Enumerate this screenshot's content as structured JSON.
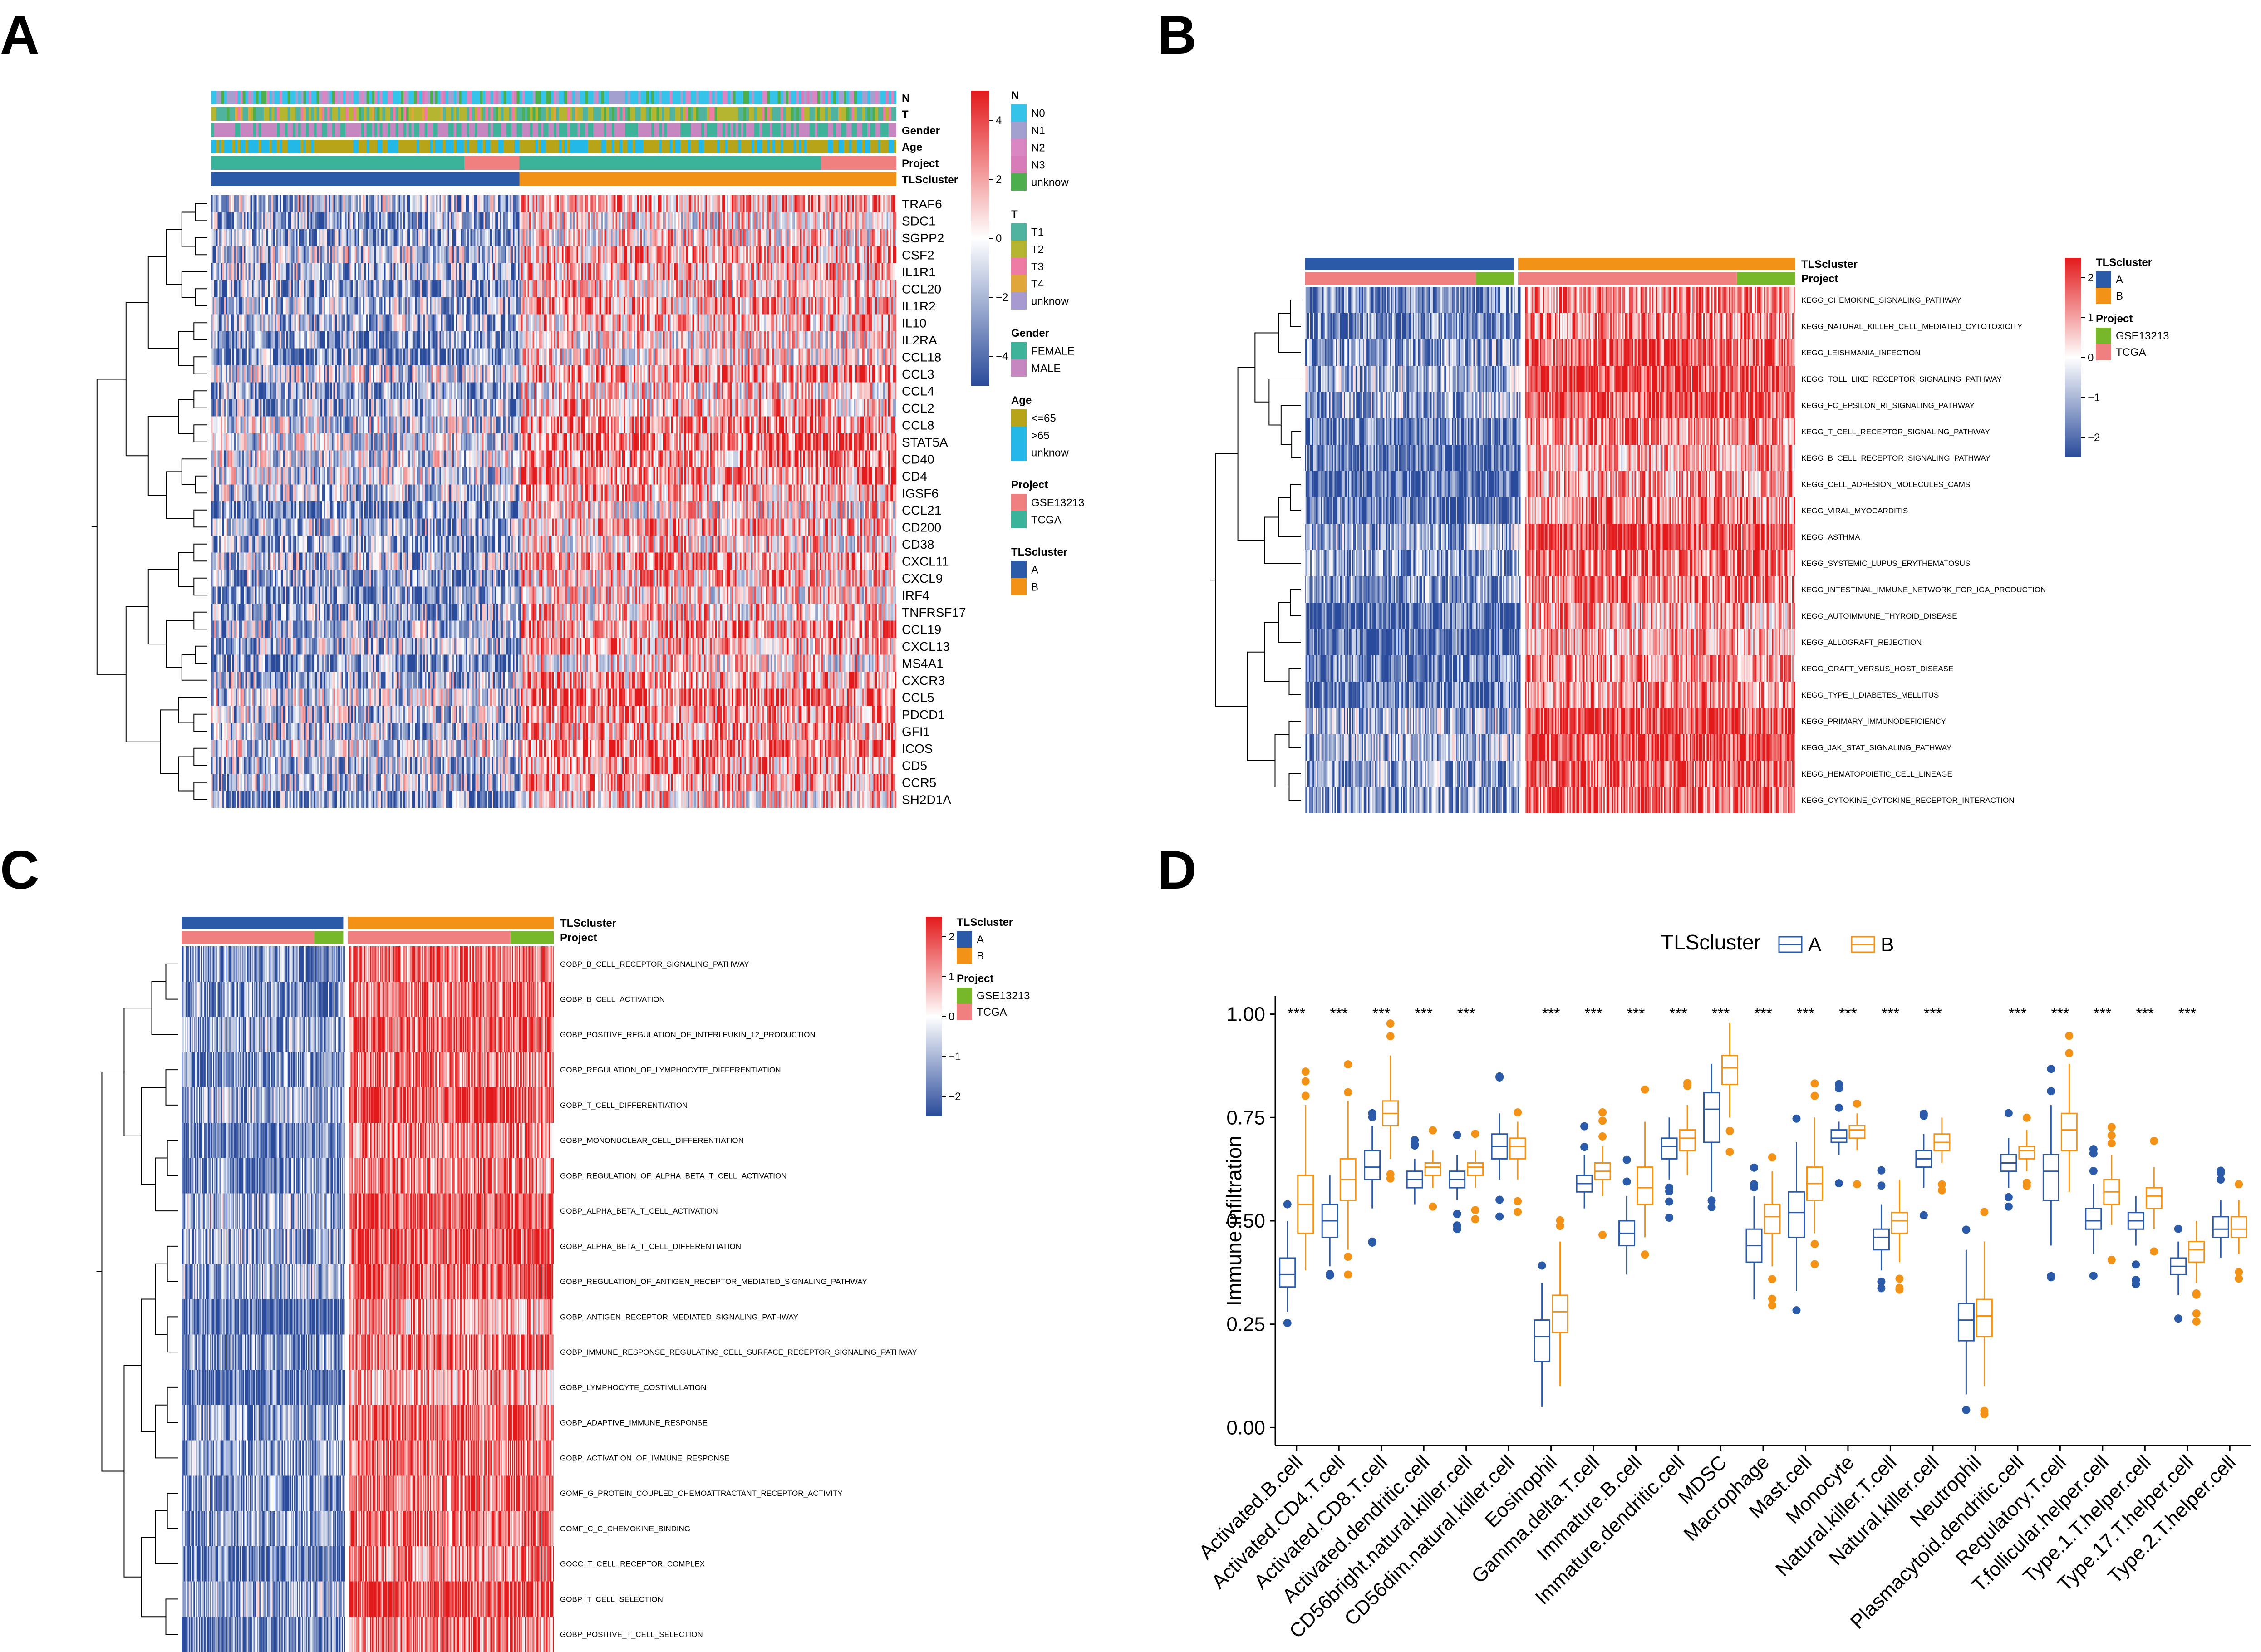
{
  "panel_labels": [
    "A",
    "B",
    "C",
    "D"
  ],
  "colors": {
    "cluster_A": "#2b5aa8",
    "cluster_B": "#f29318",
    "gse13213": "#76b82a",
    "tcga": "#f08080",
    "heat_low": "#2a4b9b",
    "heat_mid": "#ffffff",
    "heat_high": "#e31a1c",
    "N0": "#35c3ea",
    "N1": "#a3a0d0",
    "N2": "#d986c2",
    "N3": "#d77cb8",
    "T1": "#4fb3a0",
    "T2": "#b6b531",
    "T3": "#ed7ba3",
    "T4": "#e0a63b",
    "unknow": "#4cae4c",
    "FEMALE": "#3fb39a",
    "MALE": "#c687c0",
    "age_le65": "#b7a419",
    "age_gt65": "#24b8e6",
    "age_unknow": "#25b6ea",
    "project_tcga_A": "#3bb39a"
  },
  "chart_data": [
    {
      "type": "heatmap",
      "panel": "A",
      "annotation_tracks": [
        "N",
        "T",
        "Gender",
        "Age",
        "Project",
        "TLScluster"
      ],
      "rows": [
        "TRAF6",
        "SDC1",
        "SGPP2",
        "CSF2",
        "IL1R1",
        "CCL20",
        "IL1R2",
        "IL10",
        "IL2RA",
        "CCL18",
        "CCL3",
        "CCL4",
        "CCL2",
        "CCL8",
        "STAT5A",
        "CD40",
        "CD4",
        "IGSF6",
        "CCL21",
        "CD200",
        "CD38",
        "CXCL11",
        "CXCL9",
        "IRF4",
        "TNFRSF17",
        "CCL19",
        "CXCL13",
        "MS4A1",
        "CXCR3",
        "CCL5",
        "PDCD1",
        "GFI1",
        "ICOS",
        "CD5",
        "CCR5",
        "SH2D1A"
      ],
      "color_scale": {
        "min": -4,
        "max": 4,
        "ticks": [
          "4",
          "2",
          "0",
          "−2",
          "−4"
        ]
      },
      "legend": [
        {
          "title": "N",
          "items": [
            "N0",
            "N1",
            "N2",
            "N3",
            "unknow"
          ]
        },
        {
          "title": "T",
          "items": [
            "T1",
            "T2",
            "T3",
            "T4",
            "unknow"
          ]
        },
        {
          "title": "Gender",
          "items": [
            "FEMALE",
            "MALE"
          ]
        },
        {
          "title": "Age",
          "items": [
            "<=65",
            ">65",
            "unknow"
          ]
        },
        {
          "title": "Project",
          "items": [
            "GSE13213",
            "TCGA"
          ]
        },
        {
          "title": "TLScluster",
          "items": [
            "A",
            "B"
          ]
        }
      ],
      "column_split": {
        "cluster_A_fraction": 0.45,
        "cluster_B_fraction": 0.55
      }
    },
    {
      "type": "heatmap",
      "panel": "B",
      "annotation_tracks": [
        "TLScluster",
        "Project"
      ],
      "rows": [
        "KEGG_CHEMOKINE_SIGNALING_PATHWAY",
        "KEGG_NATURAL_KILLER_CELL_MEDIATED_CYTOTOXICITY",
        "KEGG_LEISHMANIA_INFECTION",
        "KEGG_TOLL_LIKE_RECEPTOR_SIGNALING_PATHWAY",
        "KEGG_FC_EPSILON_RI_SIGNALING_PATHWAY",
        "KEGG_T_CELL_RECEPTOR_SIGNALING_PATHWAY",
        "KEGG_B_CELL_RECEPTOR_SIGNALING_PATHWAY",
        "KEGG_CELL_ADHESION_MOLECULES_CAMS",
        "KEGG_VIRAL_MYOCARDITIS",
        "KEGG_ASTHMA",
        "KEGG_SYSTEMIC_LUPUS_ERYTHEMATOSUS",
        "KEGG_INTESTINAL_IMMUNE_NETWORK_FOR_IGA_PRODUCTION",
        "KEGG_AUTOIMMUNE_THYROID_DISEASE",
        "KEGG_ALLOGRAFT_REJECTION",
        "KEGG_GRAFT_VERSUS_HOST_DISEASE",
        "KEGG_TYPE_I_DIABETES_MELLITUS",
        "KEGG_PRIMARY_IMMUNODEFICIENCY",
        "KEGG_JAK_STAT_SIGNALING_PATHWAY",
        "KEGG_HEMATOPOIETIC_CELL_LINEAGE",
        "KEGG_CYTOKINE_CYTOKINE_RECEPTOR_INTERACTION"
      ],
      "color_scale": {
        "min": -2,
        "max": 2,
        "ticks": [
          "2",
          "1",
          "0",
          "−1",
          "−2"
        ]
      },
      "legend": [
        {
          "title": "TLScluster",
          "items": [
            "A",
            "B"
          ]
        },
        {
          "title": "Project",
          "items": [
            "GSE13213",
            "TCGA"
          ]
        }
      ]
    },
    {
      "type": "heatmap",
      "panel": "C",
      "annotation_tracks": [
        "TLScluster",
        "Project"
      ],
      "rows": [
        "GOBP_B_CELL_RECEPTOR_SIGNALING_PATHWAY",
        "GOBP_B_CELL_ACTIVATION",
        "GOBP_POSITIVE_REGULATION_OF_INTERLEUKIN_12_PRODUCTION",
        "GOBP_REGULATION_OF_LYMPHOCYTE_DIFFERENTIATION",
        "GOBP_T_CELL_DIFFERENTIATION",
        "GOBP_MONONUCLEAR_CELL_DIFFERENTIATION",
        "GOBP_REGULATION_OF_ALPHA_BETA_T_CELL_ACTIVATION",
        "GOBP_ALPHA_BETA_T_CELL_ACTIVATION",
        "GOBP_ALPHA_BETA_T_CELL_DIFFERENTIATION",
        "GOBP_REGULATION_OF_ANTIGEN_RECEPTOR_MEDIATED_SIGNALING_PATHWAY",
        "GOBP_ANTIGEN_RECEPTOR_MEDIATED_SIGNALING_PATHWAY",
        "GOBP_IMMUNE_RESPONSE_REGULATING_CELL_SURFACE_RECEPTOR_SIGNALING_PATHWAY",
        "GOBP_LYMPHOCYTE_COSTIMULATION",
        "GOBP_ADAPTIVE_IMMUNE_RESPONSE",
        "GOBP_ACTIVATION_OF_IMMUNE_RESPONSE",
        "GOMF_G_PROTEIN_COUPLED_CHEMOATTRACTANT_RECEPTOR_ACTIVITY",
        "GOMF_C_C_CHEMOKINE_BINDING",
        "GOCC_T_CELL_RECEPTOR_COMPLEX",
        "GOBP_T_CELL_SELECTION",
        "GOBP_POSITIVE_T_CELL_SELECTION"
      ],
      "color_scale": {
        "min": -2,
        "max": 2,
        "ticks": [
          "2",
          "1",
          "0",
          "−1",
          "−2"
        ]
      },
      "legend": [
        {
          "title": "TLScluster",
          "items": [
            "A",
            "B"
          ]
        },
        {
          "title": "Project",
          "items": [
            "GSE13213",
            "TCGA"
          ]
        }
      ]
    },
    {
      "type": "box",
      "panel": "D",
      "legend_title": "TLScluster",
      "groups": [
        "A",
        "B"
      ],
      "ylabel": "Immune infiltration",
      "ylim": [
        0,
        1.0
      ],
      "yticks": [
        "0.00",
        "0.25",
        "0.50",
        "0.75",
        "1.00"
      ],
      "categories": [
        "Activated.B.cell",
        "Activated.CD4.T.cell",
        "Activated.CD8.T.cell",
        "Activated.dendritic.cell",
        "CD56bright.natural.killer.cell",
        "CD56dim.natural.killer.cell",
        "Eosinophil",
        "Gamma.delta.T.cell",
        "Immature.B.cell",
        "Immature.dendritic.cell",
        "MDSC",
        "Macrophage",
        "Mast.cell",
        "Monocyte",
        "Natural.killer.T.cell",
        "Natural.killer.cell",
        "Neutrophil",
        "Plasmacytoid.dendritic.cell",
        "Regulatory.T.cell",
        "T.follicular.helper.cell",
        "Type.1.T.helper.cell",
        "Type.17.T.helper.cell",
        "Type.2.T.helper.cell"
      ],
      "significance": [
        "***",
        "***",
        "***",
        "***",
        "***",
        "",
        "***",
        "***",
        "***",
        "***",
        "***",
        "***",
        "***",
        "***",
        "***",
        "***",
        "",
        "***",
        "***",
        "***",
        "***",
        "***",
        ""
      ],
      "series": [
        {
          "name": "A",
          "boxes": [
            [
              0.28,
              0.34,
              0.37,
              0.41,
              0.5
            ],
            [
              0.39,
              0.46,
              0.5,
              0.54,
              0.61
            ],
            [
              0.53,
              0.6,
              0.63,
              0.67,
              0.73
            ],
            [
              0.54,
              0.58,
              0.6,
              0.62,
              0.65
            ],
            [
              0.55,
              0.58,
              0.6,
              0.62,
              0.66
            ],
            [
              0.6,
              0.65,
              0.68,
              0.71,
              0.76
            ],
            [
              0.05,
              0.16,
              0.22,
              0.26,
              0.35
            ],
            [
              0.53,
              0.57,
              0.59,
              0.61,
              0.66
            ],
            [
              0.37,
              0.44,
              0.47,
              0.5,
              0.56
            ],
            [
              0.6,
              0.65,
              0.68,
              0.7,
              0.75
            ],
            [
              0.57,
              0.69,
              0.77,
              0.81,
              0.88
            ],
            [
              0.31,
              0.4,
              0.44,
              0.48,
              0.56
            ],
            [
              0.33,
              0.46,
              0.52,
              0.57,
              0.69
            ],
            [
              0.66,
              0.69,
              0.7,
              0.72,
              0.74
            ],
            [
              0.38,
              0.43,
              0.46,
              0.48,
              0.54
            ],
            [
              0.58,
              0.63,
              0.65,
              0.67,
              0.71
            ],
            [
              0.08,
              0.21,
              0.26,
              0.3,
              0.43
            ],
            [
              0.58,
              0.62,
              0.64,
              0.66,
              0.7
            ],
            [
              0.44,
              0.55,
              0.62,
              0.66,
              0.78
            ],
            [
              0.42,
              0.48,
              0.5,
              0.53,
              0.59
            ],
            [
              0.44,
              0.48,
              0.5,
              0.52,
              0.56
            ],
            [
              0.32,
              0.37,
              0.39,
              0.41,
              0.45
            ],
            [
              0.41,
              0.46,
              0.48,
              0.51,
              0.55
            ]
          ]
        },
        {
          "name": "B",
          "boxes": [
            [
              0.38,
              0.47,
              0.54,
              0.61,
              0.78
            ],
            [
              0.43,
              0.55,
              0.6,
              0.65,
              0.79
            ],
            [
              0.65,
              0.73,
              0.76,
              0.79,
              0.9
            ],
            [
              0.58,
              0.61,
              0.63,
              0.64,
              0.67
            ],
            [
              0.58,
              0.61,
              0.63,
              0.64,
              0.67
            ],
            [
              0.6,
              0.65,
              0.68,
              0.7,
              0.74
            ],
            [
              0.1,
              0.23,
              0.28,
              0.32,
              0.45
            ],
            [
              0.56,
              0.6,
              0.62,
              0.64,
              0.68
            ],
            [
              0.46,
              0.54,
              0.58,
              0.63,
              0.74
            ],
            [
              0.61,
              0.67,
              0.7,
              0.72,
              0.78
            ],
            [
              0.75,
              0.83,
              0.87,
              0.9,
              0.98
            ],
            [
              0.39,
              0.47,
              0.51,
              0.54,
              0.62
            ],
            [
              0.47,
              0.55,
              0.59,
              0.63,
              0.75
            ],
            [
              0.67,
              0.7,
              0.72,
              0.73,
              0.76
            ],
            [
              0.4,
              0.47,
              0.5,
              0.52,
              0.6
            ],
            [
              0.64,
              0.67,
              0.69,
              0.71,
              0.75
            ],
            [
              0.1,
              0.22,
              0.27,
              0.31,
              0.45
            ],
            [
              0.62,
              0.65,
              0.67,
              0.68,
              0.72
            ],
            [
              0.57,
              0.67,
              0.72,
              0.76,
              0.88
            ],
            [
              0.49,
              0.54,
              0.57,
              0.6,
              0.66
            ],
            [
              0.48,
              0.53,
              0.56,
              0.58,
              0.63
            ],
            [
              0.35,
              0.4,
              0.43,
              0.45,
              0.5
            ],
            [
              0.42,
              0.46,
              0.48,
              0.51,
              0.55
            ]
          ]
        }
      ]
    }
  ]
}
